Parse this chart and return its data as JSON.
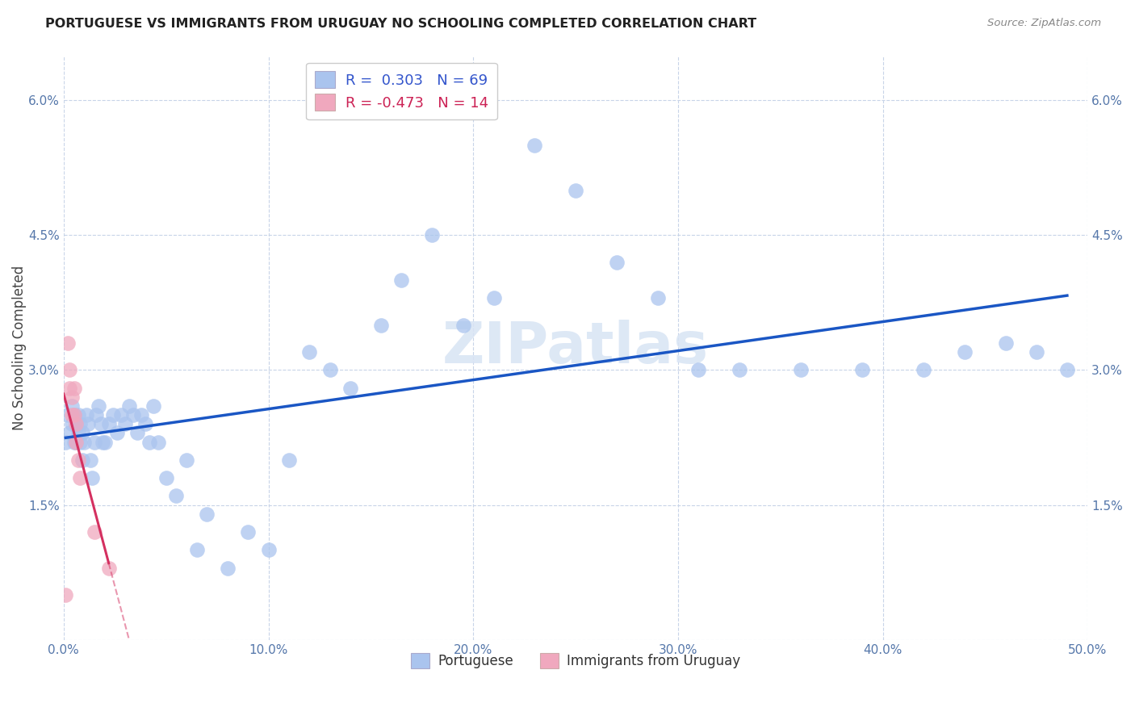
{
  "title": "PORTUGUESE VS IMMIGRANTS FROM URUGUAY NO SCHOOLING COMPLETED CORRELATION CHART",
  "source": "Source: ZipAtlas.com",
  "ylabel": "No Schooling Completed",
  "xlim": [
    0.0,
    0.5
  ],
  "ylim": [
    0.0,
    0.065
  ],
  "xticks": [
    0.0,
    0.1,
    0.2,
    0.3,
    0.4,
    0.5
  ],
  "yticks": [
    0.0,
    0.015,
    0.03,
    0.045,
    0.06
  ],
  "ytick_labels": [
    "",
    "1.5%",
    "3.0%",
    "4.5%",
    "6.0%"
  ],
  "xtick_labels": [
    "0.0%",
    "10.0%",
    "20.0%",
    "30.0%",
    "40.0%",
    "50.0%"
  ],
  "blue_R": 0.303,
  "blue_N": 69,
  "pink_R": -0.473,
  "pink_N": 14,
  "blue_color": "#aac4ee",
  "pink_color": "#f0a8be",
  "blue_line_color": "#1a56c4",
  "pink_line_color": "#d43060",
  "legend_label_blue": "Portuguese",
  "legend_label_pink": "Immigrants from Uruguay",
  "blue_x": [
    0.001,
    0.002,
    0.003,
    0.004,
    0.004,
    0.005,
    0.005,
    0.006,
    0.006,
    0.007,
    0.007,
    0.008,
    0.008,
    0.009,
    0.009,
    0.01,
    0.011,
    0.012,
    0.013,
    0.014,
    0.015,
    0.016,
    0.017,
    0.018,
    0.019,
    0.02,
    0.022,
    0.024,
    0.026,
    0.028,
    0.03,
    0.032,
    0.034,
    0.036,
    0.038,
    0.04,
    0.042,
    0.044,
    0.046,
    0.05,
    0.055,
    0.06,
    0.065,
    0.07,
    0.08,
    0.09,
    0.1,
    0.11,
    0.12,
    0.13,
    0.14,
    0.155,
    0.165,
    0.18,
    0.195,
    0.21,
    0.23,
    0.25,
    0.27,
    0.29,
    0.31,
    0.33,
    0.36,
    0.39,
    0.42,
    0.44,
    0.46,
    0.475,
    0.49
  ],
  "blue_y": [
    0.022,
    0.025,
    0.023,
    0.024,
    0.026,
    0.022,
    0.025,
    0.024,
    0.022,
    0.025,
    0.023,
    0.022,
    0.024,
    0.023,
    0.02,
    0.022,
    0.025,
    0.024,
    0.02,
    0.018,
    0.022,
    0.025,
    0.026,
    0.024,
    0.022,
    0.022,
    0.024,
    0.025,
    0.023,
    0.025,
    0.024,
    0.026,
    0.025,
    0.023,
    0.025,
    0.024,
    0.022,
    0.026,
    0.022,
    0.018,
    0.016,
    0.02,
    0.01,
    0.014,
    0.008,
    0.012,
    0.01,
    0.02,
    0.032,
    0.03,
    0.028,
    0.035,
    0.04,
    0.045,
    0.035,
    0.038,
    0.055,
    0.05,
    0.042,
    0.038,
    0.03,
    0.03,
    0.03,
    0.03,
    0.03,
    0.032,
    0.033,
    0.032,
    0.03
  ],
  "pink_x": [
    0.001,
    0.002,
    0.003,
    0.003,
    0.004,
    0.004,
    0.005,
    0.005,
    0.006,
    0.006,
    0.007,
    0.008,
    0.015,
    0.022
  ],
  "pink_y": [
    0.005,
    0.033,
    0.03,
    0.028,
    0.027,
    0.025,
    0.028,
    0.025,
    0.024,
    0.022,
    0.02,
    0.018,
    0.012,
    0.008
  ]
}
